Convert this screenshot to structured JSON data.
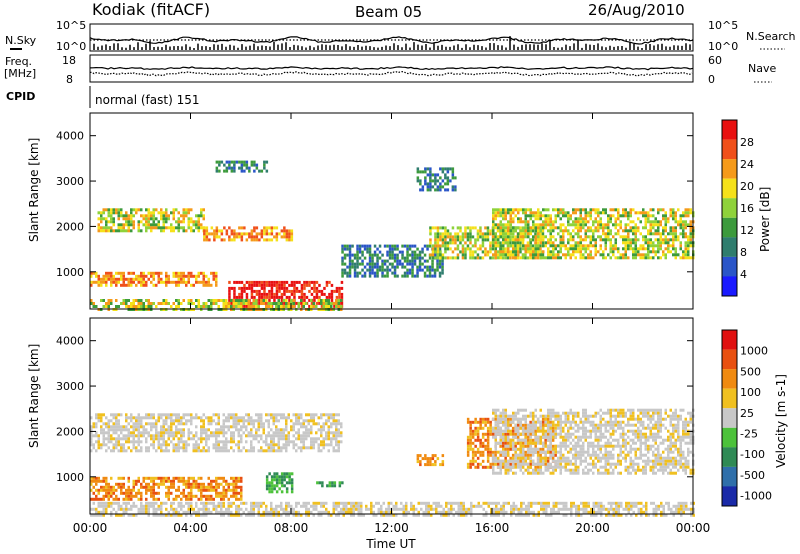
{
  "header": {
    "station": "Kodiak (fitACF)",
    "beam": "Beam 05",
    "date": "26/Aug/2010"
  },
  "top_panels": {
    "nsky_label": "N.Sky",
    "nsky_ticks": [
      "10^5",
      "10^0"
    ],
    "nsearch_label": "N.Search",
    "nsearch_ticks": [
      "10^5",
      "10^0"
    ],
    "freq_label": "Freq.",
    "freq_unit": "[MHz]",
    "freq_ticks": [
      "18",
      "8"
    ],
    "nave_label": "Nave",
    "nave_ticks": [
      "60",
      "0"
    ],
    "cpid_label": "CPID",
    "cpid_value": "normal (fast) 151"
  },
  "chart_data": [
    {
      "type": "heatmap",
      "name": "power",
      "ylabel": "Slant Range [km]",
      "ylim": [
        180,
        4500
      ],
      "yticks": [
        "4000",
        "3000",
        "2000",
        "1000"
      ],
      "colorbar_label": "Power [dB]",
      "colorbar_ticks": [
        "28",
        "24",
        "20",
        "16",
        "12",
        "8",
        "4"
      ],
      "colors": [
        "#1a1aff",
        "#2a55c8",
        "#2f7d6e",
        "#3c9a3c",
        "#8fd23a",
        "#f5e11a",
        "#f59a1a",
        "#f0501a",
        "#e81010"
      ],
      "regions": [
        {
          "t": [
            0.3,
            4.5
          ],
          "r": [
            1900,
            2400
          ],
          "level": "mid"
        },
        {
          "t": [
            4.5,
            8.0
          ],
          "r": [
            1700,
            2000
          ],
          "level": "high"
        },
        {
          "t": [
            5.5,
            10.0
          ],
          "r": [
            250,
            800
          ],
          "level": "max"
        },
        {
          "t": [
            0.0,
            5.0
          ],
          "r": [
            700,
            1000
          ],
          "level": "high"
        },
        {
          "t": [
            0.0,
            10.0
          ],
          "r": [
            180,
            400
          ],
          "level": "mid"
        },
        {
          "t": [
            10.0,
            14.0
          ],
          "r": [
            900,
            1600
          ],
          "level": "low"
        },
        {
          "t": [
            13.5,
            18.0
          ],
          "r": [
            1300,
            2000
          ],
          "level": "mid"
        },
        {
          "t": [
            16.0,
            24.0
          ],
          "r": [
            1300,
            2400
          ],
          "level": "mid"
        },
        {
          "t": [
            5.0,
            7.0
          ],
          "r": [
            3200,
            3450
          ],
          "level": "low"
        },
        {
          "t": [
            13.0,
            14.5
          ],
          "r": [
            2800,
            3300
          ],
          "level": "low"
        }
      ]
    },
    {
      "type": "heatmap",
      "name": "velocity",
      "xlabel": "Time UT",
      "xticks": [
        "00:00",
        "04:00",
        "08:00",
        "12:00",
        "16:00",
        "20:00",
        "00:00"
      ],
      "xlim": [
        0,
        24
      ],
      "ylabel": "Slant Range [km]",
      "ylim": [
        180,
        4500
      ],
      "yticks": [
        "4000",
        "3000",
        "2000",
        "1000"
      ],
      "colorbar_label": "Velocity [m s-1]",
      "colorbar_ticks": [
        "1000",
        "500",
        "100",
        "25",
        "-25",
        "-100",
        "-500",
        "-1000"
      ],
      "colors": [
        "#1a2aa8",
        "#2f6faa",
        "#2f8a55",
        "#4cc23a",
        "#c8c8c8",
        "#f0c020",
        "#f08a10",
        "#e85010",
        "#e01010"
      ],
      "regions": [
        {
          "t": [
            0.0,
            10.0
          ],
          "r": [
            1600,
            2400
          ],
          "level": "ground"
        },
        {
          "t": [
            0.0,
            6.0
          ],
          "r": [
            500,
            1000
          ],
          "level": "neg"
        },
        {
          "t": [
            15.0,
            18.5
          ],
          "r": [
            1200,
            2300
          ],
          "level": "neg"
        },
        {
          "t": [
            13.0,
            14.0
          ],
          "r": [
            1300,
            1500
          ],
          "level": "neg"
        },
        {
          "t": [
            16.0,
            24.0
          ],
          "r": [
            1100,
            2500
          ],
          "level": "ground"
        },
        {
          "t": [
            0.0,
            24.0
          ],
          "r": [
            180,
            450
          ],
          "level": "ground"
        },
        {
          "t": [
            7.0,
            8.0
          ],
          "r": [
            700,
            1100
          ],
          "level": "pos"
        },
        {
          "t": [
            9.0,
            10.0
          ],
          "r": [
            800,
            900
          ],
          "level": "pos"
        }
      ]
    }
  ]
}
